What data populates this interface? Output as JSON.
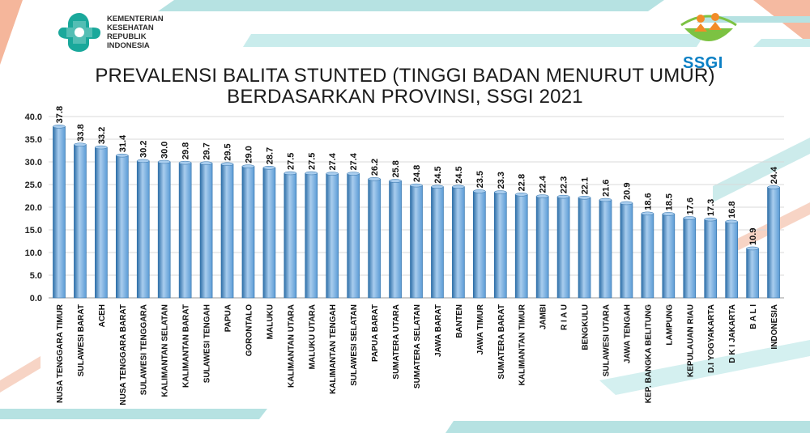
{
  "header": {
    "ministry_lines": [
      "KEMENTERIAN",
      "KESEHATAN",
      "REPUBLIK",
      "INDONESIA"
    ],
    "ssgi_logo_text": "SSGI",
    "title_line1": "PREVALENSI BALITA STUNTED (TINGGI BADAN MENURUT UMUR)",
    "title_line2": "BERDASARKAN PROVINSI, SSGI 2021"
  },
  "colors": {
    "bar": "#5b9bd5",
    "bar_dark": "#2e6fa8",
    "bar_light": "#a9cdee",
    "deco_teal": "#9fd8d8",
    "deco_orange": "#f3a98a"
  },
  "chart_data": {
    "type": "bar",
    "title": "PREVALENSI BALITA STUNTED (TINGGI BADAN MENURUT UMUR) BERDASARKAN PROVINSI, SSGI 2021",
    "xlabel": "",
    "ylabel": "",
    "ylim": [
      0,
      40
    ],
    "yticks": [
      "0.0",
      "5.0",
      "10.0",
      "15.0",
      "20.0",
      "25.0",
      "30.0",
      "35.0",
      "40.0"
    ],
    "grid": true,
    "categories": [
      "NUSA TENGGARA TIMUR",
      "SULAWESI BARAT",
      "ACEH",
      "NUSA TENGGARA BARAT",
      "SULAWESI TENGGARA",
      "KALIMANTAN SELATAN",
      "KALIMANTAN BARAT",
      "SULAWESI TENGAH",
      "PAPUA",
      "GORONTALO",
      "MALUKU",
      "KALIMANTAN UTARA",
      "MALUKU UTARA",
      "KALIMANTAN TENGAH",
      "SULAWESI SELATAN",
      "PAPUA BARAT",
      "SUMATERA UTARA",
      "SUMATERA SELATAN",
      "JAWA BARAT",
      "BANTEN",
      "JAWA TIMUR",
      "SUMATERA BARAT",
      "KALIMANTAN TIMUR",
      "JAMBI",
      "R I A U",
      "BENGKULU",
      "SULAWESI UTARA",
      "JAWA TENGAH",
      "KEP. BANGKA BELITUNG",
      "LAMPUNG",
      "KEPULAUAN RIAU",
      "D.I YOGYAKARTA",
      "D K I JAKARTA",
      "B A L I",
      "INDONESIA"
    ],
    "values": [
      37.8,
      33.8,
      33.2,
      31.4,
      30.2,
      30.0,
      29.8,
      29.7,
      29.5,
      29.0,
      28.7,
      27.5,
      27.5,
      27.4,
      27.4,
      26.2,
      25.8,
      24.8,
      24.5,
      24.5,
      23.5,
      23.3,
      22.8,
      22.4,
      22.3,
      22.1,
      21.6,
      20.9,
      18.6,
      18.5,
      17.6,
      17.3,
      16.8,
      10.9,
      24.4
    ],
    "value_labels": [
      "37.8",
      "33.8",
      "33.2",
      "31.4",
      "30.2",
      "30.0",
      "29.8",
      "29.7",
      "29.5",
      "29.0",
      "28.7",
      "27.5",
      "27.5",
      "27.4",
      "27.4",
      "26.2",
      "25.8",
      "24.8",
      "24.5",
      "24.5",
      "23.5",
      "23.3",
      "22.8",
      "22.4",
      "22.3",
      "22.1",
      "21.6",
      "20.9",
      "18.6",
      "18.5",
      "17.6",
      "17.3",
      "16.8",
      "10.9",
      "24.4"
    ]
  }
}
